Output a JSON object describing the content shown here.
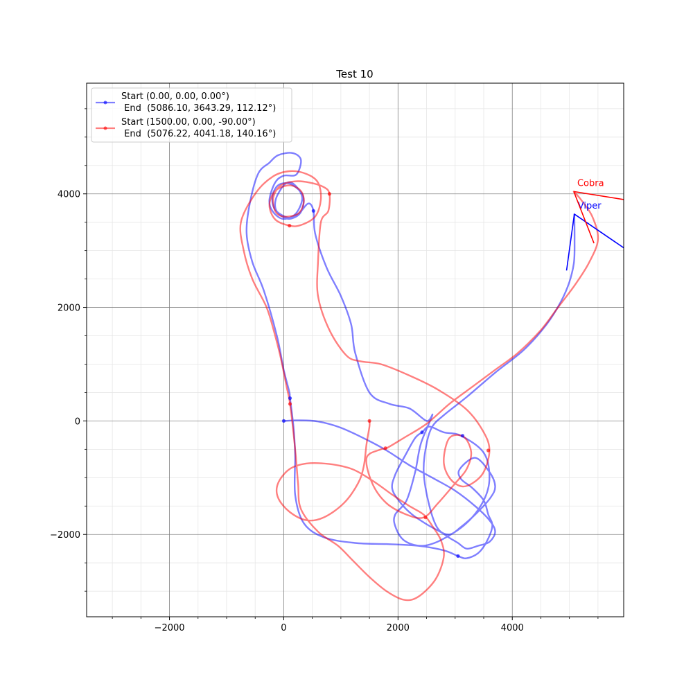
{
  "chart_data": {
    "type": "line",
    "title": "Test 10",
    "xlabel": "",
    "ylabel": "",
    "xlim": [
      -3450,
      5950
    ],
    "ylim": [
      -3450,
      5950
    ],
    "x_ticks": [
      -2000,
      0,
      2000,
      4000
    ],
    "y_ticks": [
      -2000,
      0,
      2000,
      4000
    ],
    "x_tick_labels": [
      "−2000",
      "0",
      "2000",
      "4000"
    ],
    "y_tick_labels": [
      "−2000",
      "0",
      "2000",
      "4000"
    ],
    "grid": true,
    "legend_placement": "upper-left",
    "series": [
      {
        "name": "Start (0.00, 0.00, 0.00°)\n End  (5086.10, 3643.29, 112.12°)",
        "legend_line1": "Start (0.00, 0.00, 0.00°)",
        "legend_line2": " End  (5086.10, 3643.29, 112.12°)",
        "color": "#0000ff",
        "points": [
          [
            0,
            0
          ],
          [
            250,
            10
          ],
          [
            600,
            -10
          ],
          [
            1000,
            -120
          ],
          [
            1450,
            -330
          ],
          [
            1800,
            -520
          ],
          [
            2200,
            -780
          ],
          [
            2600,
            -1000
          ],
          [
            3000,
            -1230
          ],
          [
            3350,
            -1500
          ],
          [
            3600,
            -1750
          ],
          [
            3700,
            -1950
          ],
          [
            3600,
            -2130
          ],
          [
            3400,
            -2200
          ],
          [
            3200,
            -2250
          ],
          [
            3050,
            -2150
          ],
          [
            2900,
            -2060
          ],
          [
            2750,
            -1960
          ],
          [
            2500,
            -1820
          ],
          [
            2250,
            -1650
          ],
          [
            2050,
            -1450
          ],
          [
            1900,
            -1200
          ],
          [
            1950,
            -950
          ],
          [
            2130,
            -600
          ],
          [
            2300,
            -300
          ],
          [
            2420,
            -200
          ],
          [
            2550,
            -100
          ],
          [
            2800,
            -200
          ],
          [
            3100,
            -260
          ],
          [
            3500,
            -560
          ],
          [
            3600,
            -1000
          ],
          [
            3500,
            -1400
          ],
          [
            3200,
            -1800
          ],
          [
            2750,
            -2100
          ],
          [
            2400,
            -2200
          ],
          [
            2100,
            -2100
          ],
          [
            1950,
            -1850
          ],
          [
            1950,
            -1650
          ],
          [
            2150,
            -1400
          ],
          [
            2300,
            -900
          ],
          [
            2400,
            -400
          ],
          [
            2600,
            100
          ],
          [
            2500,
            0
          ],
          [
            2200,
            220
          ],
          [
            1850,
            300
          ],
          [
            1500,
            500
          ],
          [
            1250,
            1200
          ],
          [
            1180,
            1700
          ],
          [
            1000,
            2200
          ],
          [
            750,
            2700
          ],
          [
            550,
            3300
          ],
          [
            520,
            3700
          ],
          [
            430,
            3830
          ],
          [
            260,
            3650
          ],
          [
            80,
            3580
          ],
          [
            -150,
            3720
          ],
          [
            -200,
            3950
          ],
          [
            -100,
            4150
          ],
          [
            100,
            4180
          ],
          [
            300,
            4030
          ],
          [
            350,
            3860
          ],
          [
            280,
            3650
          ],
          [
            80,
            3560
          ],
          [
            -120,
            3690
          ],
          [
            -140,
            3900
          ],
          [
            0,
            4150
          ],
          [
            130,
            4200
          ],
          [
            280,
            4050
          ],
          [
            320,
            3880
          ],
          [
            200,
            3640
          ],
          [
            -20,
            3560
          ],
          [
            -200,
            3700
          ],
          [
            -250,
            3900
          ],
          [
            -150,
            4200
          ],
          [
            0,
            4320
          ],
          [
            220,
            4340
          ],
          [
            300,
            4600
          ],
          [
            150,
            4720
          ],
          [
            -100,
            4680
          ],
          [
            -250,
            4550
          ],
          [
            -450,
            4350
          ],
          [
            -600,
            3800
          ],
          [
            -650,
            3300
          ],
          [
            -550,
            2800
          ],
          [
            -350,
            2300
          ],
          [
            -120,
            1500
          ],
          [
            0,
            900
          ],
          [
            100,
            500
          ],
          [
            110,
            400
          ],
          [
            170,
            -100
          ],
          [
            200,
            -600
          ],
          [
            200,
            -1300
          ],
          [
            350,
            -1800
          ],
          [
            700,
            -2050
          ],
          [
            1250,
            -2150
          ],
          [
            1800,
            -2170
          ],
          [
            2350,
            -2200
          ],
          [
            2800,
            -2280
          ],
          [
            3050,
            -2380
          ],
          [
            3200,
            -2420
          ],
          [
            3400,
            -2330
          ],
          [
            3550,
            -2130
          ],
          [
            3650,
            -1850
          ],
          [
            3580,
            -1650
          ],
          [
            3500,
            -1400
          ],
          [
            3300,
            -1180
          ],
          [
            3100,
            -1020
          ],
          [
            3080,
            -850
          ],
          [
            3350,
            -650
          ],
          [
            3600,
            -900
          ],
          [
            3700,
            -1150
          ],
          [
            3620,
            -1350
          ],
          [
            3380,
            -1620
          ],
          [
            3100,
            -1870
          ],
          [
            2900,
            -2000
          ],
          [
            2700,
            -1900
          ],
          [
            2550,
            -1500
          ],
          [
            2450,
            -900
          ],
          [
            2500,
            -400
          ],
          [
            2600,
            -100
          ],
          [
            2800,
            100
          ],
          [
            3200,
            420
          ],
          [
            3700,
            850
          ],
          [
            4200,
            1250
          ],
          [
            4600,
            1700
          ],
          [
            4850,
            2100
          ],
          [
            5000,
            2450
          ],
          [
            5080,
            2800
          ],
          [
            5090,
            3200
          ],
          [
            5086,
            3643
          ]
        ]
      },
      {
        "name": "Start (1500.00, 0.00, -90.00°)\n End  (5076.22, 4041.18, 140.16°)",
        "legend_line1": "Start (1500.00, 0.00, -90.00°)",
        "legend_line2": " End  (5076.22, 4041.18, 140.16°)",
        "color": "#ff0000",
        "points": [
          [
            1500,
            0
          ],
          [
            1500,
            -100
          ],
          [
            1450,
            -400
          ],
          [
            1400,
            -800
          ],
          [
            1300,
            -1100
          ],
          [
            1050,
            -1450
          ],
          [
            700,
            -1700
          ],
          [
            400,
            -1750
          ],
          [
            100,
            -1600
          ],
          [
            -100,
            -1350
          ],
          [
            -100,
            -1100
          ],
          [
            100,
            -850
          ],
          [
            400,
            -750
          ],
          [
            800,
            -760
          ],
          [
            1200,
            -850
          ],
          [
            1550,
            -1050
          ],
          [
            1900,
            -1300
          ],
          [
            2200,
            -1500
          ],
          [
            2450,
            -1650
          ],
          [
            2600,
            -1850
          ],
          [
            2750,
            -2100
          ],
          [
            2800,
            -2400
          ],
          [
            2650,
            -2800
          ],
          [
            2350,
            -3100
          ],
          [
            2100,
            -3150
          ],
          [
            1800,
            -3000
          ],
          [
            1500,
            -2750
          ],
          [
            1200,
            -2450
          ],
          [
            950,
            -2200
          ],
          [
            600,
            -1950
          ],
          [
            300,
            -1550
          ],
          [
            250,
            -1100
          ],
          [
            200,
            -500
          ],
          [
            110,
            300
          ],
          [
            50,
            600
          ],
          [
            -50,
            1100
          ],
          [
            -150,
            1500
          ],
          [
            -300,
            2000
          ],
          [
            -550,
            2500
          ],
          [
            -700,
            3000
          ],
          [
            -750,
            3500
          ],
          [
            -500,
            4000
          ],
          [
            -200,
            4300
          ],
          [
            100,
            4400
          ],
          [
            400,
            4350
          ],
          [
            600,
            4200
          ],
          [
            650,
            3900
          ],
          [
            550,
            3600
          ],
          [
            300,
            3450
          ],
          [
            100,
            3440
          ],
          [
            -150,
            3550
          ],
          [
            -250,
            3800
          ],
          [
            -150,
            4050
          ],
          [
            100,
            4150
          ],
          [
            300,
            4050
          ],
          [
            350,
            3850
          ],
          [
            250,
            3650
          ],
          [
            0,
            3600
          ],
          [
            -150,
            3700
          ],
          [
            -180,
            3950
          ],
          [
            -50,
            4150
          ],
          [
            200,
            4220
          ],
          [
            450,
            4200
          ],
          [
            700,
            4120
          ],
          [
            800,
            4000
          ],
          [
            780,
            3700
          ],
          [
            650,
            3500
          ],
          [
            600,
            2800
          ],
          [
            600,
            2200
          ],
          [
            800,
            1600
          ],
          [
            1100,
            1150
          ],
          [
            1350,
            1050
          ],
          [
            1700,
            1000
          ],
          [
            2200,
            800
          ],
          [
            2700,
            550
          ],
          [
            3200,
            200
          ],
          [
            3500,
            -200
          ],
          [
            3600,
            -520
          ],
          [
            3500,
            -900
          ],
          [
            3300,
            -1100
          ],
          [
            3100,
            -1150
          ],
          [
            2900,
            -1000
          ],
          [
            2800,
            -700
          ],
          [
            2900,
            -300
          ],
          [
            3150,
            -280
          ],
          [
            3280,
            -550
          ],
          [
            3200,
            -850
          ],
          [
            3000,
            -1100
          ],
          [
            2700,
            -1450
          ],
          [
            2450,
            -1700
          ],
          [
            2150,
            -1650
          ],
          [
            1800,
            -1450
          ],
          [
            1550,
            -1100
          ],
          [
            1450,
            -650
          ],
          [
            1700,
            -500
          ],
          [
            1800,
            -480
          ],
          [
            2100,
            -300
          ],
          [
            2500,
            -50
          ],
          [
            2900,
            300
          ],
          [
            3300,
            600
          ],
          [
            3700,
            900
          ],
          [
            4100,
            1200
          ],
          [
            4500,
            1600
          ],
          [
            4800,
            2000
          ],
          [
            5100,
            2400
          ],
          [
            5350,
            2800
          ],
          [
            5500,
            3200
          ],
          [
            5400,
            3600
          ],
          [
            5200,
            3900
          ],
          [
            5076,
            4041
          ]
        ]
      }
    ],
    "annotations": [
      {
        "name": "Viper",
        "color": "#0000ff",
        "pos": [
          5086.1,
          3643.29
        ],
        "lines": [
          [
            4950,
            2650
          ],
          [
            5950,
            3050
          ]
        ]
      },
      {
        "name": "Cobra",
        "color": "#ff0000",
        "pos": [
          5076.22,
          4041.18
        ],
        "lines": [
          [
            5430,
            3130
          ],
          [
            5950,
            3900
          ]
        ]
      }
    ],
    "markers": [
      {
        "color": "#0000ff",
        "points": [
          [
            0,
            0
          ],
          [
            110,
            400
          ],
          [
            520,
            3700
          ],
          [
            2420,
            -200
          ],
          [
            3130,
            -260
          ],
          [
            3050,
            -2380
          ]
        ]
      },
      {
        "color": "#ff0000",
        "points": [
          [
            1500,
            0
          ],
          [
            110,
            300
          ],
          [
            100,
            3440
          ],
          [
            800,
            4000
          ],
          [
            1780,
            -480
          ],
          [
            3580,
            -520
          ],
          [
            2480,
            -1700
          ]
        ]
      }
    ]
  }
}
